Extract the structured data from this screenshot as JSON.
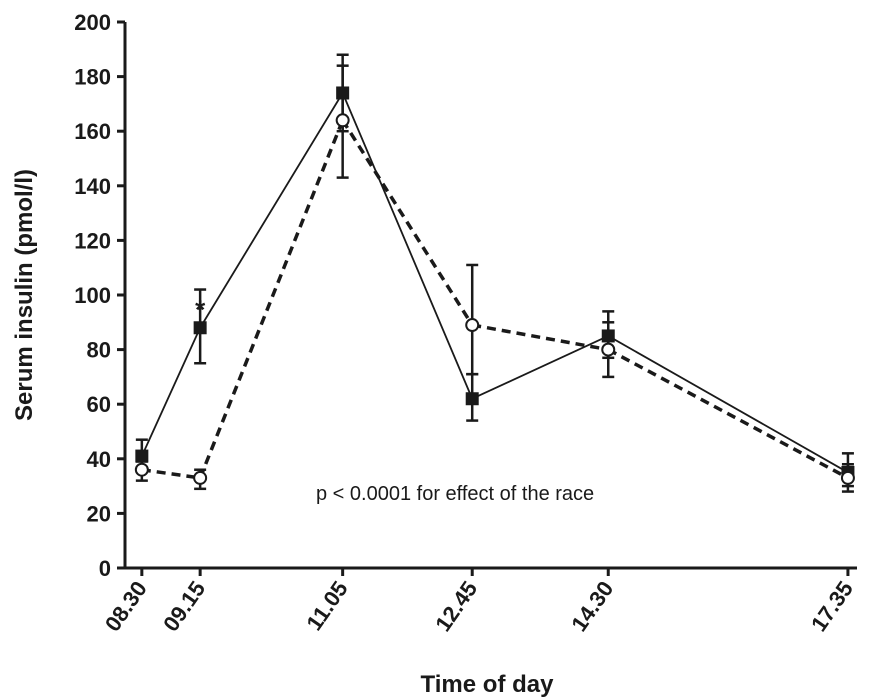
{
  "chart_data": {
    "type": "line",
    "xlabel": "Time of day",
    "ylabel": "Serum insulin (pmol/l)",
    "x_ticks": [
      "08.30",
      "09.15",
      "11.05",
      "12.45",
      "14.30",
      "17.35"
    ],
    "x_minutes": [
      510,
      555,
      665,
      765,
      870,
      1055
    ],
    "xlim": [
      497,
      1062
    ],
    "ylim": [
      0,
      200
    ],
    "y_ticks": [
      0,
      20,
      40,
      60,
      80,
      100,
      120,
      140,
      160,
      180,
      200
    ],
    "series": [
      {
        "style": "solid",
        "marker": "filled-square",
        "values": [
          41,
          88,
          174,
          62,
          85,
          35
        ],
        "err_low": [
          5,
          13,
          14,
          8,
          8,
          5
        ],
        "err_high": [
          6,
          14,
          14,
          9,
          9,
          7
        ]
      },
      {
        "style": "dashed",
        "marker": "open-circle",
        "values": [
          36,
          33,
          164,
          89,
          80,
          33
        ],
        "err_low": [
          4,
          4,
          21,
          18,
          10,
          5
        ],
        "err_high": [
          3,
          3,
          20,
          22,
          10,
          5
        ]
      }
    ],
    "annotations": {
      "p_value_text": "p < 0.0001 for effect of the race",
      "significance_marker": "*",
      "significance_at": "09.15",
      "significance_value": 98
    },
    "grid": false,
    "legend": "none"
  },
  "colors": {
    "ink": "#1a1a1a"
  }
}
